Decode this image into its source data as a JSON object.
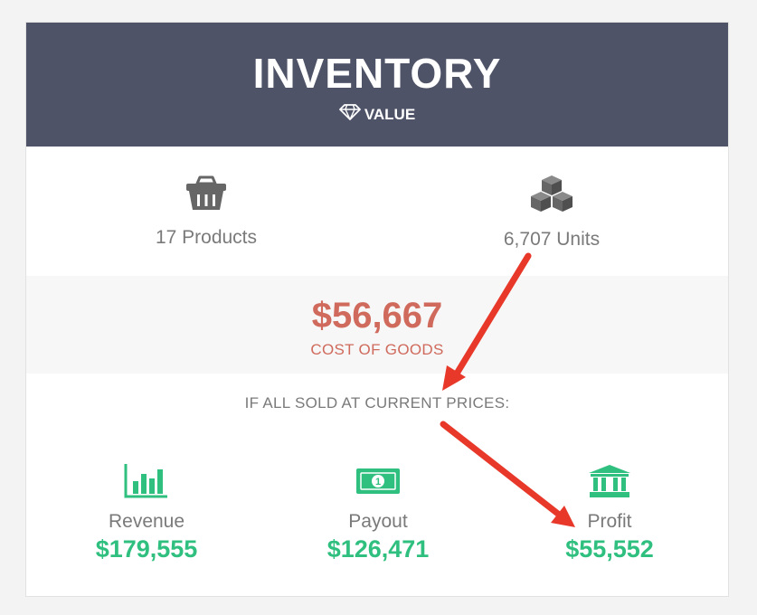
{
  "header": {
    "title": "INVENTORY",
    "subtitle": "VALUE",
    "subtitle_icon": "diamond-icon",
    "color": "#4f5368"
  },
  "stats": {
    "products": {
      "label": "17 Products",
      "icon": "basket-icon"
    },
    "units": {
      "label": "6,707 Units",
      "icon": "boxes-icon"
    }
  },
  "cost": {
    "amount": "$56,667",
    "label": "COST OF GOODS",
    "color": "#cf6a5c"
  },
  "sold_note": "IF ALL SOLD AT CURRENT PRICES:",
  "metrics": {
    "revenue": {
      "label": "Revenue",
      "value": "$179,555",
      "icon": "bar-chart-icon"
    },
    "payout": {
      "label": "Payout",
      "value": "$126,471",
      "icon": "banknote-icon"
    },
    "profit": {
      "label": "Profit",
      "value": "$55,552",
      "icon": "bank-icon"
    },
    "color": "#2fbf7f"
  },
  "annotation_color": "#e8382a"
}
